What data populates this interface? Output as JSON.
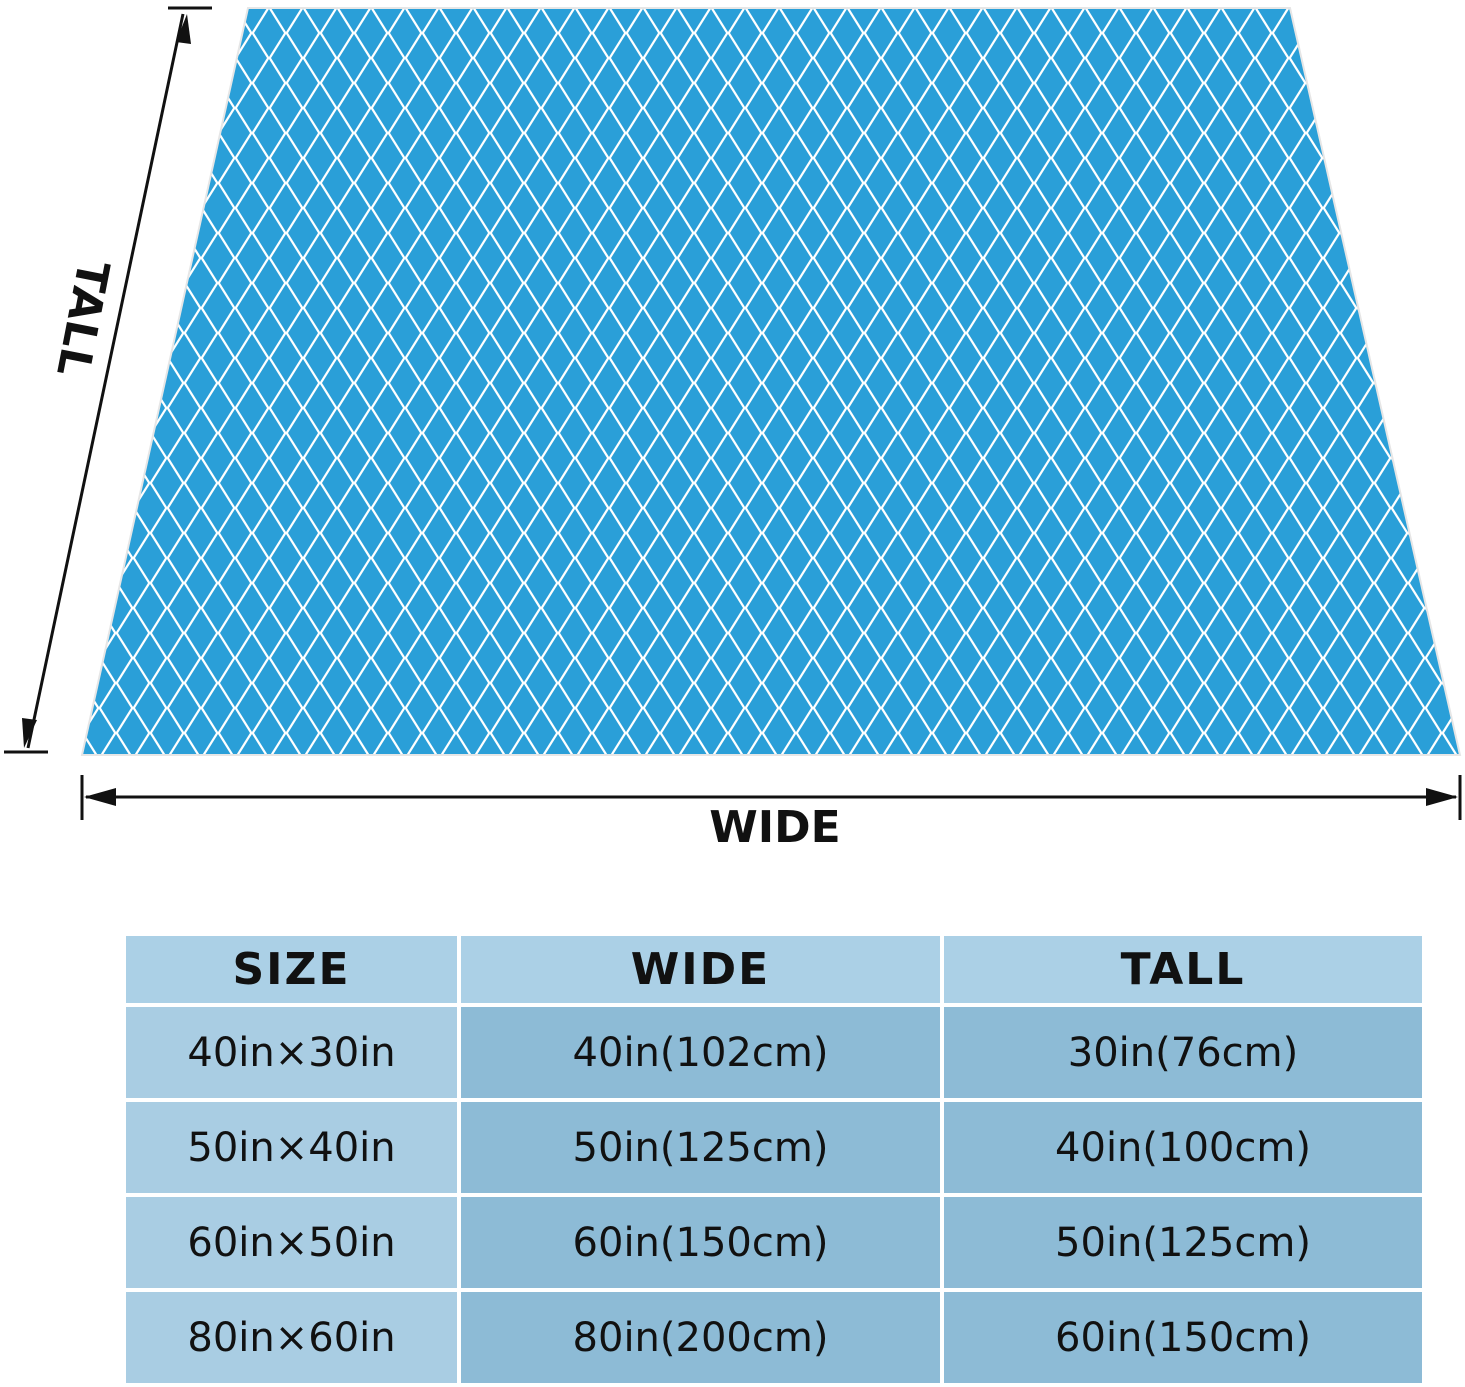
{
  "diagram": {
    "tall_label": "TALL",
    "wide_label": "WIDE"
  },
  "table": {
    "header": [
      "SIZE",
      "WIDE",
      "TALL"
    ],
    "rows": [
      [
        "40in×30in",
        "40in(102cm)",
        "30in(76cm)"
      ],
      [
        "50in×40in",
        "50in(125cm)",
        "40in(100cm)"
      ],
      [
        "60in×50in",
        "60in(150cm)",
        "50in(125cm)"
      ],
      [
        "80in×60in",
        "80in(200cm)",
        "60in(150cm)"
      ]
    ]
  }
}
